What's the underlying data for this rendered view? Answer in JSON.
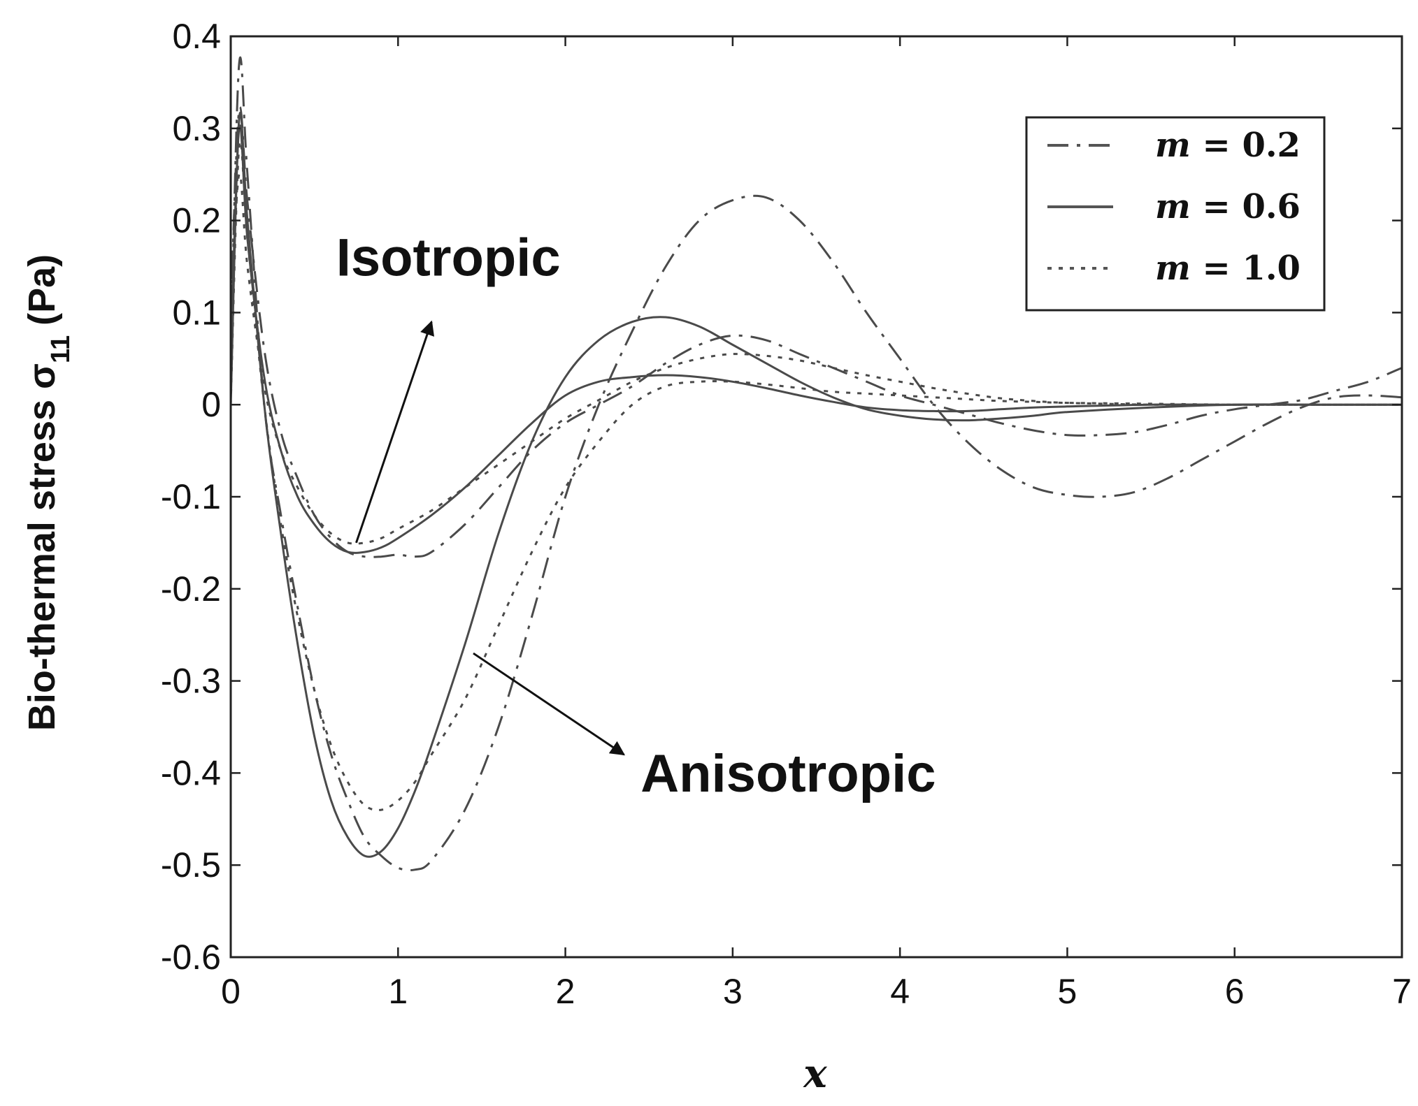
{
  "chart_data": {
    "type": "line",
    "title": "",
    "xlabel": "x",
    "ylabel": "Bio-thermal stress σ",
    "ylabel_subscript": "11",
    "ylabel_unit": "(Pa)",
    "xlim": [
      0,
      7
    ],
    "ylim": [
      -0.6,
      0.4
    ],
    "xticks": [
      0,
      1,
      2,
      3,
      4,
      5,
      6,
      7
    ],
    "xtick_labels": [
      "0",
      "1",
      "2",
      "3",
      "4",
      "5",
      "6",
      "7"
    ],
    "yticks": [
      0.4,
      0.3,
      0.2,
      0.1,
      0,
      -0.1,
      -0.2,
      -0.3,
      -0.4,
      -0.5,
      -0.6
    ],
    "ytick_labels": [
      "0.4",
      "0.3",
      "0.2",
      "0.1",
      "0",
      "-0.1",
      "-0.2",
      "-0.3",
      "-0.4",
      "-0.5",
      "-0.6"
    ],
    "grid": false,
    "legend_position": "top-right",
    "legend": [
      {
        "var": "m",
        "text": " = 0.2",
        "style": "dashdot",
        "color": "#555555"
      },
      {
        "var": "m",
        "text": " = 0.6",
        "style": "solid",
        "color": "#555555"
      },
      {
        "var": "m",
        "text": " = 1.0",
        "style": "dotted",
        "color": "#555555"
      }
    ],
    "annotations": [
      {
        "text": "Isotropic",
        "arrow_from": [
          0.75,
          -0.15
        ],
        "arrow_to": [
          1.2,
          0.09
        ],
        "label_at": [
          0.63,
          0.14
        ]
      },
      {
        "text": "Anisotropic",
        "arrow_from": [
          1.45,
          -0.27
        ],
        "arrow_to": [
          2.35,
          -0.38
        ],
        "label_at": [
          2.45,
          -0.42
        ]
      }
    ],
    "series": [
      {
        "group": "Isotropic",
        "style": "dashdot",
        "x": [
          0,
          0.05,
          0.1,
          0.2,
          0.3,
          0.4,
          0.5,
          0.6,
          0.7,
          0.8,
          0.9,
          1.0,
          1.1,
          1.2,
          1.4,
          1.6,
          1.8,
          2.0,
          2.2,
          2.4,
          2.6,
          2.8,
          3.0,
          3.2,
          3.4,
          3.6,
          3.8,
          4.0,
          4.2,
          4.4,
          4.6,
          4.8,
          5.0,
          5.2,
          5.4,
          5.6,
          5.8,
          6.0,
          6.2,
          6.4,
          6.6,
          6.8,
          7.0
        ],
        "y": [
          0.1,
          0.32,
          0.22,
          0.06,
          -0.03,
          -0.08,
          -0.12,
          -0.145,
          -0.16,
          -0.165,
          -0.165,
          -0.163,
          -0.165,
          -0.16,
          -0.13,
          -0.09,
          -0.05,
          -0.02,
          0.0,
          0.02,
          0.045,
          0.065,
          0.075,
          0.07,
          0.055,
          0.04,
          0.025,
          0.01,
          0.0,
          -0.01,
          -0.02,
          -0.028,
          -0.033,
          -0.033,
          -0.03,
          -0.022,
          -0.012,
          -0.005,
          0.0,
          0.005,
          0.015,
          0.025,
          0.04
        ]
      },
      {
        "group": "Isotropic",
        "style": "solid",
        "x": [
          0,
          0.05,
          0.1,
          0.2,
          0.3,
          0.4,
          0.5,
          0.6,
          0.7,
          0.8,
          0.9,
          1.0,
          1.2,
          1.4,
          1.6,
          1.8,
          2.0,
          2.2,
          2.4,
          2.6,
          2.8,
          3.0,
          3.2,
          3.4,
          3.6,
          3.8,
          4.0,
          4.2,
          4.4,
          4.6,
          4.8,
          5.0,
          5.5,
          6.0,
          6.5,
          7.0
        ],
        "y": [
          0.05,
          0.3,
          0.18,
          0.03,
          -0.05,
          -0.1,
          -0.13,
          -0.15,
          -0.16,
          -0.16,
          -0.155,
          -0.145,
          -0.12,
          -0.09,
          -0.055,
          -0.02,
          0.01,
          0.025,
          0.03,
          0.032,
          0.03,
          0.025,
          0.018,
          0.01,
          0.003,
          -0.003,
          -0.006,
          -0.007,
          -0.007,
          -0.005,
          -0.003,
          -0.002,
          0.0,
          0.0,
          0.0,
          0.0
        ]
      },
      {
        "group": "Isotropic",
        "style": "dotted",
        "x": [
          0,
          0.05,
          0.1,
          0.2,
          0.3,
          0.4,
          0.5,
          0.6,
          0.7,
          0.8,
          0.9,
          1.0,
          1.2,
          1.4,
          1.6,
          1.8,
          2.0,
          2.2,
          2.4,
          2.6,
          2.8,
          3.0,
          3.2,
          3.4,
          3.6,
          3.8,
          4.0,
          4.2,
          4.4,
          4.6,
          4.8,
          5.0,
          5.5,
          6.0,
          6.5,
          7.0
        ],
        "y": [
          0.1,
          0.25,
          0.15,
          0.02,
          -0.05,
          -0.09,
          -0.12,
          -0.14,
          -0.15,
          -0.15,
          -0.145,
          -0.135,
          -0.115,
          -0.09,
          -0.065,
          -0.04,
          -0.015,
          0.005,
          0.025,
          0.04,
          0.05,
          0.055,
          0.053,
          0.048,
          0.04,
          0.032,
          0.025,
          0.018,
          0.012,
          0.007,
          0.004,
          0.002,
          0.0,
          0.0,
          0.0,
          0.0
        ]
      },
      {
        "group": "Anisotropic",
        "style": "dashdot",
        "x": [
          0,
          0.05,
          0.1,
          0.2,
          0.3,
          0.4,
          0.5,
          0.6,
          0.7,
          0.8,
          0.9,
          1.0,
          1.1,
          1.2,
          1.4,
          1.6,
          1.8,
          2.0,
          2.2,
          2.4,
          2.6,
          2.8,
          3.0,
          3.2,
          3.4,
          3.6,
          3.8,
          4.0,
          4.2,
          4.4,
          4.6,
          4.8,
          5.0,
          5.2,
          5.4,
          5.6,
          5.8,
          6.0,
          6.2,
          6.4,
          6.6,
          6.8,
          7.0
        ],
        "y": [
          0.05,
          0.37,
          0.25,
          0.0,
          -0.12,
          -0.22,
          -0.31,
          -0.38,
          -0.43,
          -0.47,
          -0.49,
          -0.503,
          -0.505,
          -0.495,
          -0.44,
          -0.35,
          -0.23,
          -0.1,
          0.0,
          0.08,
          0.15,
          0.2,
          0.222,
          0.225,
          0.2,
          0.155,
          0.1,
          0.05,
          0.0,
          -0.04,
          -0.07,
          -0.09,
          -0.098,
          -0.1,
          -0.095,
          -0.08,
          -0.06,
          -0.04,
          -0.02,
          -0.003,
          0.008,
          0.01,
          0.008
        ]
      },
      {
        "group": "Anisotropic",
        "style": "solid",
        "x": [
          0,
          0.05,
          0.1,
          0.2,
          0.3,
          0.4,
          0.5,
          0.6,
          0.7,
          0.8,
          0.9,
          1.0,
          1.1,
          1.2,
          1.4,
          1.6,
          1.8,
          2.0,
          2.2,
          2.4,
          2.6,
          2.8,
          3.0,
          3.2,
          3.4,
          3.6,
          3.8,
          4.0,
          4.2,
          4.4,
          4.6,
          4.8,
          5.0,
          5.5,
          6.0,
          6.5,
          7.0
        ],
        "y": [
          0.0,
          0.31,
          0.2,
          0.0,
          -0.14,
          -0.26,
          -0.36,
          -0.43,
          -0.47,
          -0.49,
          -0.485,
          -0.46,
          -0.42,
          -0.37,
          -0.26,
          -0.14,
          -0.04,
          0.03,
          0.07,
          0.09,
          0.095,
          0.085,
          0.065,
          0.045,
          0.025,
          0.008,
          -0.005,
          -0.012,
          -0.016,
          -0.017,
          -0.015,
          -0.012,
          -0.008,
          -0.003,
          0.0,
          0.0,
          0.0
        ]
      },
      {
        "group": "Anisotropic",
        "style": "dotted",
        "x": [
          0,
          0.05,
          0.1,
          0.2,
          0.3,
          0.4,
          0.5,
          0.6,
          0.7,
          0.8,
          0.9,
          1.0,
          1.1,
          1.2,
          1.4,
          1.6,
          1.8,
          2.0,
          2.2,
          2.4,
          2.6,
          2.8,
          3.0,
          3.2,
          3.4,
          3.6,
          3.8,
          4.0,
          4.2,
          4.4,
          4.6,
          4.8,
          5.0,
          5.5,
          6.0,
          6.5,
          7.0
        ],
        "y": [
          0.0,
          0.28,
          0.18,
          0.0,
          -0.13,
          -0.23,
          -0.31,
          -0.37,
          -0.41,
          -0.435,
          -0.44,
          -0.43,
          -0.41,
          -0.38,
          -0.32,
          -0.24,
          -0.16,
          -0.09,
          -0.04,
          0.0,
          0.02,
          0.025,
          0.025,
          0.022,
          0.018,
          0.014,
          0.012,
          0.01,
          0.008,
          0.006,
          0.004,
          0.003,
          0.002,
          0.001,
          0.0,
          0.0,
          0.0
        ]
      }
    ]
  }
}
